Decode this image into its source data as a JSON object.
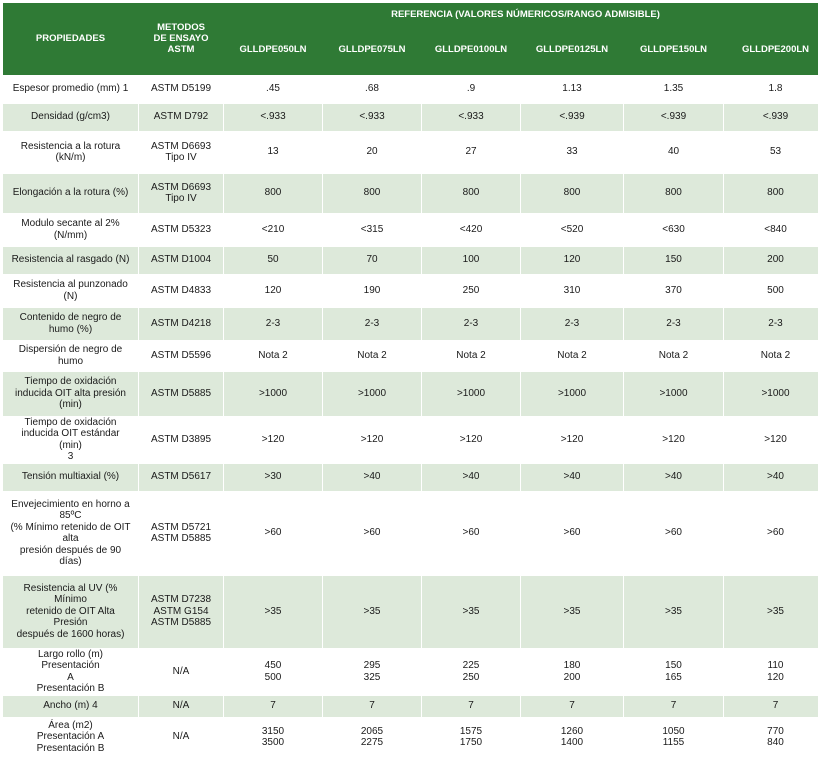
{
  "header": {
    "propiedades": "PROPIEDADES",
    "metodos": "METODOS\nDE ENSAYO\nASTM",
    "referencia": "REFERENCIA (VALORES NÚMERICOS/RANGO ADMISIBLE)",
    "products": [
      "GLLDPE050LN",
      "GLLDPE075LN",
      "GLLDPE0100LN",
      "GLLDPE0125LN",
      "GLLDPE150LN",
      "GLLDPE200LN"
    ]
  },
  "rows": [
    {
      "prop": "Espesor promedio (mm) 1",
      "method": "ASTM D5199",
      "values": [
        ".45",
        ".68",
        ".9",
        "1.13",
        "1.35",
        "1.8"
      ]
    },
    {
      "prop": "Densidad (g/cm3)",
      "method": "ASTM D792",
      "values": [
        "<.933",
        "<.933",
        "<.933",
        "<.939",
        "<.939",
        "<.939"
      ]
    },
    {
      "prop": "Resistencia a la rotura\n(kN/m)",
      "method": "ASTM D6693\nTipo IV",
      "values": [
        "13",
        "20",
        "27",
        "33",
        "40",
        "53"
      ]
    },
    {
      "prop": "Elongación a la rotura (%)",
      "method": "ASTM D6693\nTipo IV",
      "values": [
        "800",
        "800",
        "800",
        "800",
        "800",
        "800"
      ]
    },
    {
      "prop": "Modulo secante al 2%\n(N/mm)",
      "method": "ASTM D5323",
      "values": [
        "<210",
        "<315",
        "<420",
        "<520",
        "<630",
        "<840"
      ]
    },
    {
      "prop": "Resistencia al rasgado (N)",
      "method": "ASTM D1004",
      "values": [
        "50",
        "70",
        "100",
        "120",
        "150",
        "200"
      ]
    },
    {
      "prop": "Resistencia al punzonado\n(N)",
      "method": "ASTM D4833",
      "values": [
        "120",
        "190",
        "250",
        "310",
        "370",
        "500"
      ]
    },
    {
      "prop": "Contenido de negro de\nhumo (%)",
      "method": "ASTM D4218",
      "values": [
        "2-3",
        "2-3",
        "2-3",
        "2-3",
        "2-3",
        "2-3"
      ]
    },
    {
      "prop": "Dispersión de negro de\nhumo",
      "method": "ASTM D5596",
      "values": [
        "Nota 2",
        "Nota 2",
        "Nota 2",
        "Nota 2",
        "Nota 2",
        "Nota 2"
      ]
    },
    {
      "prop": "Tiempo de oxidación\ninducida OIT alta presión\n(min)",
      "method": "ASTM D5885",
      "values": [
        ">1000",
        ">1000",
        ">1000",
        ">1000",
        ">1000",
        ">1000"
      ]
    },
    {
      "prop": "Tiempo de oxidación\ninducida OIT estándar (min)\n3",
      "method": "ASTM D3895",
      "values": [
        ">120",
        ">120",
        ">120",
        ">120",
        ">120",
        ">120"
      ]
    },
    {
      "prop": "Tensión multiaxial (%)",
      "method": "ASTM D5617",
      "values": [
        ">30",
        ">40",
        ">40",
        ">40",
        ">40",
        ">40"
      ]
    },
    {
      "prop": "Envejecimiento en horno a\n85ºC\n(% Mínimo retenido de OIT\nalta\npresión después de 90 días)",
      "method": "ASTM D5721\nASTM D5885",
      "values": [
        ">60",
        ">60",
        ">60",
        ">60",
        ">60",
        ">60"
      ]
    },
    {
      "prop": "Resistencia al UV (% Mínimo\nretenido de OIT Alta Presión\ndespués de 1600 horas)",
      "method": "ASTM D7238\nASTM G154\nASTM D5885",
      "values": [
        ">35",
        ">35",
        ">35",
        ">35",
        ">35",
        ">35"
      ]
    },
    {
      "prop": "Largo rollo (m) Presentación\nA\nPresentación B",
      "method": "N/A",
      "values": [
        "450\n500",
        "295\n325",
        "225\n250",
        "180\n200",
        "150\n165",
        "110\n120"
      ]
    },
    {
      "prop": "Ancho (m) 4",
      "method": "N/A",
      "values": [
        "7",
        "7",
        "7",
        "7",
        "7",
        "7"
      ]
    },
    {
      "prop": "Área (m2)\nPresentación A\nPresentación B",
      "method": "N/A",
      "values": [
        "3150\n3500",
        "2065\n2275",
        "1575\n1750",
        "1260\n1400",
        "1050\n1155",
        "770\n840"
      ]
    }
  ],
  "colors": {
    "header_green": "#2f7a35",
    "stripe": "#dde9da"
  }
}
